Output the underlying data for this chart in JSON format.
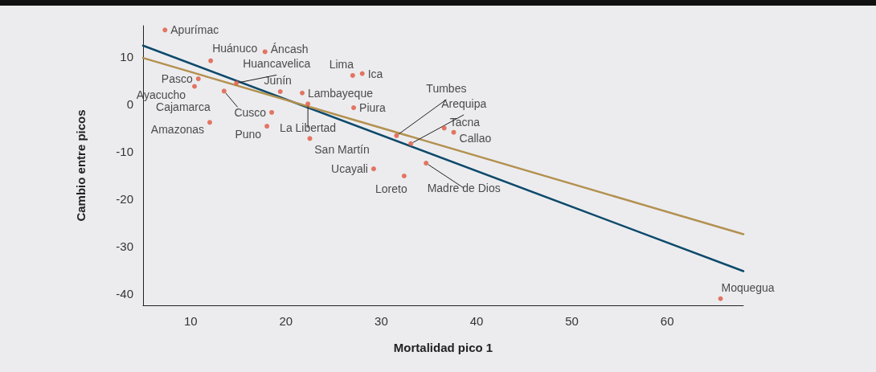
{
  "chart_data": {
    "type": "scatter",
    "xlabel": "Mortalidad pico 1",
    "ylabel": "Cambio entre picos",
    "xlim": [
      5,
      68
    ],
    "ylim": [
      -42.5,
      16.5
    ],
    "xticks": [
      10,
      20,
      30,
      40,
      50,
      60
    ],
    "yticks": [
      -40,
      -30,
      -20,
      -10,
      0,
      10
    ],
    "grid": false,
    "marker": "circle",
    "series": [
      {
        "type": "line",
        "marker": "none",
        "color": "#0d4a6b",
        "x": [
          5,
          68
        ],
        "values": [
          12.3,
          -35.3
        ]
      },
      {
        "type": "line",
        "marker": "none",
        "color": "#b3914f",
        "x": [
          5,
          68
        ],
        "values": [
          9.7,
          -27.5
        ]
      },
      {
        "color": "#e0583d",
        "x": [
          7.3,
          12.1,
          17.8,
          10.8,
          10.4,
          13.5,
          12.0,
          14.8,
          19.4,
          21.7,
          22.3,
          18.5,
          18.0,
          22.5,
          27.0,
          28.0,
          27.1,
          31.6,
          33.1,
          36.6,
          37.6,
          29.2,
          32.4,
          34.7,
          65.6
        ],
        "values": [
          15.6,
          9.1,
          11.0,
          5.3,
          3.7,
          2.7,
          -3.9,
          4.4,
          2.6,
          2.3,
          0.0,
          -1.8,
          -4.7,
          -7.3,
          6.0,
          6.4,
          -0.8,
          -6.7,
          -8.4,
          -5.1,
          -6.0,
          -13.7,
          -15.2,
          -12.5,
          -41.1
        ],
        "value_labels": [
          "Apurímac",
          "Huánuco",
          "Áncash",
          "Pasco",
          "Ayacucho",
          "Cajamarca",
          "Amazonas",
          "Huancavelica",
          "Junín",
          "Lambayeque",
          "La Libertad",
          "Cusco",
          "Puno",
          "San Martín",
          "Lima",
          "Ica",
          "Piura",
          "Tumbes",
          "Arequipa",
          "Tacna",
          "Callao",
          "Ucayali",
          "Loreto",
          "Madre de Dios",
          "Moquegua"
        ]
      }
    ]
  }
}
